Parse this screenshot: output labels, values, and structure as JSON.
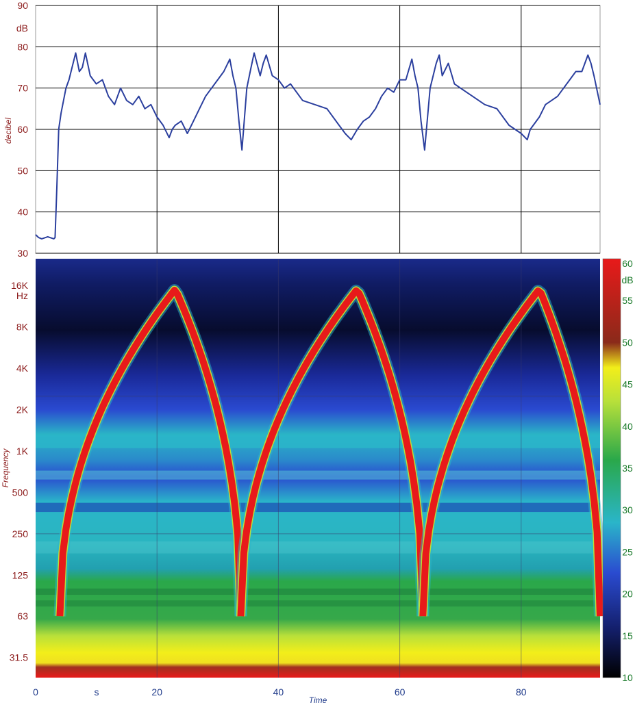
{
  "chart_data": [
    {
      "type": "line",
      "panel": "sound level",
      "ylabel": "decibel",
      "yunit": "dB",
      "ylim": [
        30,
        90
      ],
      "yticks": [
        "30",
        "40",
        "50",
        "60",
        "70",
        "80",
        "90"
      ],
      "xlim": [
        0,
        93
      ],
      "grid": true,
      "line_color": "#2b3f9e",
      "series": [
        {
          "x": [
            0,
            0.5,
            1,
            2,
            3,
            3.2,
            3.5,
            3.8,
            4.2,
            5,
            5.5,
            6,
            6.6,
            7.2,
            7.7,
            8.2,
            9,
            10,
            11,
            12,
            13,
            14,
            15,
            16,
            17,
            18,
            19,
            20,
            21,
            22,
            22.5,
            23,
            24,
            25,
            26,
            27,
            28,
            29,
            30,
            31,
            32,
            32.5,
            33,
            33.5,
            34,
            34.8,
            35.5,
            36,
            37,
            37.5,
            38,
            39,
            40,
            41,
            42,
            44,
            46,
            48,
            50,
            51,
            52,
            53,
            54,
            55,
            56,
            57,
            58,
            59,
            60,
            61,
            62,
            62.5,
            63,
            63.5,
            64.1,
            65,
            66,
            66.5,
            67,
            68,
            69,
            70,
            72,
            74,
            76,
            78,
            80,
            81,
            81.5,
            82,
            83,
            84,
            85,
            86,
            87,
            88,
            89,
            90,
            91,
            91.5,
            92,
            93
          ],
          "y": [
            34.5,
            33.8,
            33.5,
            34,
            33.5,
            33.8,
            46,
            60,
            64,
            70,
            72,
            75,
            78.5,
            74,
            75,
            78.5,
            73,
            71,
            72,
            68,
            66,
            70,
            67,
            66,
            68,
            65,
            66,
            63,
            61,
            58,
            60,
            61,
            62,
            59,
            62,
            65,
            68,
            70,
            72,
            74,
            77,
            73,
            70,
            62,
            55,
            70,
            75,
            78.5,
            73,
            76,
            78,
            73,
            72,
            70,
            71,
            67,
            66,
            65,
            61,
            59,
            57.5,
            60,
            62,
            63,
            65,
            68,
            70,
            69,
            72,
            72,
            77,
            73,
            70,
            62,
            55,
            70,
            76,
            78,
            73,
            76,
            71,
            70,
            68,
            66,
            65,
            61,
            59,
            57.5,
            60,
            61,
            63,
            66,
            67,
            68,
            70,
            72,
            74,
            74,
            78,
            76,
            73,
            66
          ]
        }
      ]
    },
    {
      "type": "heatmap",
      "panel": "spectrogram",
      "ylabel": "Frequency",
      "yunit": "Hz",
      "yscale": "log",
      "yticks": [
        "31.5",
        "63",
        "125",
        "250",
        "500",
        "1K",
        "2K",
        "4K",
        "8K",
        "16K"
      ],
      "ytick_hz": [
        31.5,
        63,
        125,
        250,
        500,
        1000,
        2000,
        4000,
        8000,
        16000
      ],
      "xlabel": "Time",
      "xunit": "s",
      "xlim": [
        0,
        93
      ],
      "xticks": [
        "0",
        "20",
        "40",
        "60",
        "80"
      ],
      "grid_lines_hz": [
        250,
        2500
      ],
      "sweeps": [
        {
          "start_s": 4.0,
          "end_s": 33.8,
          "peak_s": 23.0,
          "f_min_hz": 63,
          "f_max_hz": 15000
        },
        {
          "start_s": 33.8,
          "end_s": 63.8,
          "peak_s": 53.0,
          "f_min_hz": 63,
          "f_max_hz": 15000
        },
        {
          "start_s": 63.8,
          "end_s": 93.0,
          "peak_s": 83.0,
          "f_min_hz": 63,
          "f_max_hz": 15000
        }
      ],
      "colorbar": {
        "unit": "dB",
        "range": [
          10,
          60
        ],
        "ticks": [
          "10",
          "15",
          "20",
          "25",
          "30",
          "35",
          "40",
          "45",
          "50",
          "55",
          "60"
        ],
        "colors": [
          "#000000",
          "#1a2a8a",
          "#2a5ad8",
          "#2ab7c8",
          "#2aa84a",
          "#b8e03a",
          "#f2ee1a",
          "#8a2a1a",
          "#e81a1a"
        ]
      }
    }
  ]
}
